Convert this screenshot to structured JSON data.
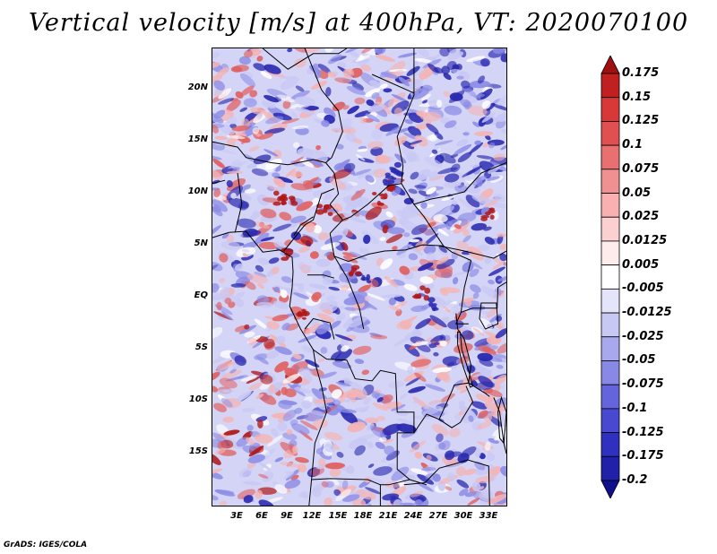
{
  "title": "Vertical velocity [m/s] at 400hPa, VT: 2020070100",
  "credit": "GrADS: IGES/COLA",
  "lat_ticks": [
    "20N",
    "15N",
    "10N",
    "5N",
    "EQ",
    "5S",
    "10S",
    "15S"
  ],
  "lon_ticks": [
    "3E",
    "6E",
    "9E",
    "12E",
    "15E",
    "18E",
    "21E",
    "24E",
    "27E",
    "30E",
    "33E"
  ],
  "colorbar": {
    "labels": [
      "0.175",
      "0.15",
      "0.125",
      "0.1",
      "0.075",
      "0.05",
      "0.025",
      "0.0125",
      "0.005",
      "-0.005",
      "-0.0125",
      "-0.025",
      "-0.05",
      "-0.075",
      "-0.1",
      "-0.125",
      "-0.175",
      "-0.2"
    ],
    "colors": [
      "#a01010",
      "#c02020",
      "#d83838",
      "#e05050",
      "#e87070",
      "#f09090",
      "#f8b0b0",
      "#fcd0d0",
      "#feecec",
      "#ffffff",
      "#e4e4fa",
      "#c8c8f4",
      "#a8a8ee",
      "#8888e6",
      "#6464dc",
      "#4848d0",
      "#3030c0",
      "#2020a8",
      "#10108c"
    ]
  },
  "map": {
    "lon_range": [
      0,
      35
    ],
    "lat_range": [
      -20,
      24
    ],
    "field_colors": {
      "strong_up": "#b01818",
      "moderate_up": "#e06060",
      "weak_up": "#f4b4b4",
      "neutral": "#ffffff",
      "weak_down": "#c8c8f4",
      "moderate_down": "#8c8ce6",
      "strong_down": "#2828b0"
    },
    "border_color": "#000000"
  }
}
